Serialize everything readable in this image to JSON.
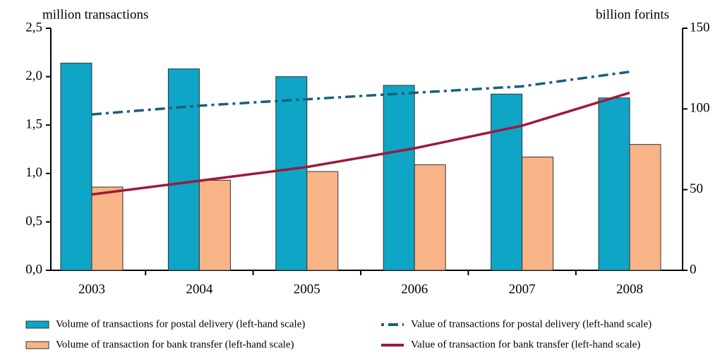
{
  "chart_data": {
    "type": "bar",
    "y_label": "million transactions",
    "y2_label": "billion forints",
    "categories": [
      "2003",
      "2004",
      "2005",
      "2006",
      "2007",
      "2008"
    ],
    "series": [
      {
        "name": "Volume of transactions for postal delivery (left-hand scale)",
        "type": "bar",
        "color": "#0ea5c6",
        "values": [
          2.14,
          2.08,
          2.0,
          1.91,
          1.82,
          1.78
        ]
      },
      {
        "name": "Volume of transaction for bank transfer (left-hand scale)",
        "type": "bar",
        "color": "#f8b387",
        "values": [
          0.86,
          0.93,
          1.02,
          1.09,
          1.17,
          1.3
        ]
      },
      {
        "name": "Value of transactions for postal delivery (left-hand scale)",
        "type": "line",
        "dash": "dashdot",
        "axis": "y2",
        "color": "#1b5e7e",
        "values": [
          96.6,
          102,
          106,
          110,
          114,
          123
        ]
      },
      {
        "name": "Value of transaction for bank transfer (left-hand scale)",
        "type": "line",
        "axis": "y2",
        "color": "#9c1a3c",
        "values": [
          47,
          55.5,
          64,
          75.6,
          89.6,
          110
        ]
      }
    ],
    "ylim": [
      0,
      2.5
    ],
    "yticks": [
      {
        "value": 0,
        "label": "0,0"
      },
      {
        "value": 0.5,
        "label": "0,5"
      },
      {
        "value": 1,
        "label": "1,0"
      },
      {
        "value": 1.5,
        "label": "1,5"
      },
      {
        "value": 2,
        "label": "2,0"
      },
      {
        "value": 2.5,
        "label": "2,5"
      }
    ],
    "y2lim": [
      0,
      150
    ],
    "y2ticks": [
      0,
      50,
      100,
      150
    ],
    "grid": false
  }
}
